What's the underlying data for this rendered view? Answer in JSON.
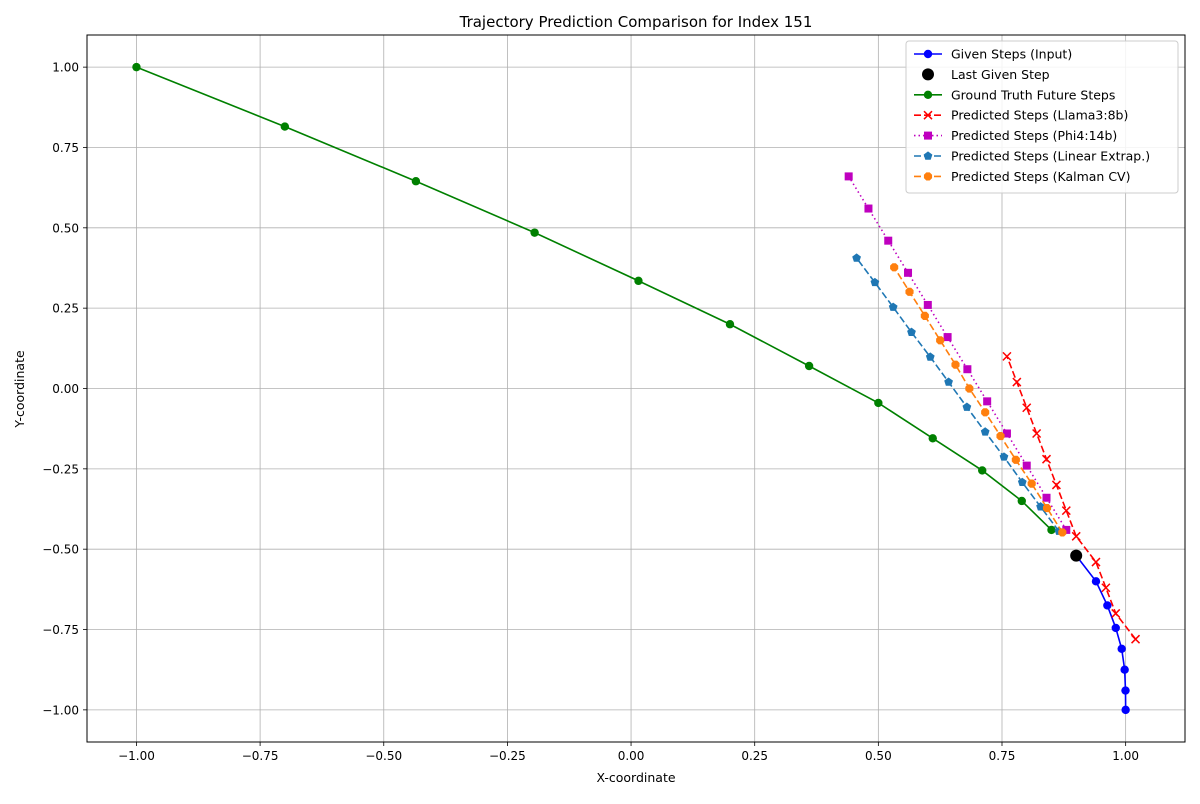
{
  "chart_data": {
    "type": "line",
    "title": "Trajectory Prediction Comparison for Index 151",
    "xlabel": "X-coordinate",
    "ylabel": "Y-coordinate",
    "xlim": [
      -1.1,
      1.12
    ],
    "ylim": [
      -1.1,
      1.1
    ],
    "xticks": [
      -1.0,
      -0.75,
      -0.5,
      -0.25,
      0.0,
      0.25,
      0.5,
      0.75,
      1.0
    ],
    "xtick_labels": [
      "−1.00",
      "−0.75",
      "−0.50",
      "−0.25",
      "0.00",
      "0.25",
      "0.50",
      "0.75",
      "1.00"
    ],
    "yticks": [
      -1.0,
      -0.75,
      -0.5,
      -0.25,
      0.0,
      0.25,
      0.5,
      0.75,
      1.0
    ],
    "ytick_labels": [
      "−1.00",
      "−0.75",
      "−0.50",
      "−0.25",
      "0.00",
      "0.25",
      "0.50",
      "0.75",
      "1.00"
    ],
    "grid": true,
    "legend_position": "top-right",
    "series": [
      {
        "name": "Given Steps (Input)",
        "color": "#0000ff",
        "line_style": "solid",
        "marker": "circle",
        "x": [
          1.0,
          0.9997,
          0.998,
          0.992,
          0.98,
          0.963,
          0.94,
          0.9
        ],
        "y": [
          -1.0,
          -0.94,
          -0.875,
          -0.81,
          -0.745,
          -0.675,
          -0.6,
          -0.52
        ]
      },
      {
        "name": "Last Given Step",
        "color": "#000000",
        "line_style": "none",
        "marker": "big-circle",
        "x": [
          0.9
        ],
        "y": [
          -0.52
        ]
      },
      {
        "name": "Ground Truth Future Steps",
        "color": "#008000",
        "line_style": "solid",
        "marker": "circle",
        "x": [
          0.85,
          0.79,
          0.71,
          0.61,
          0.5,
          0.36,
          0.2,
          0.015,
          -0.195,
          -0.435,
          -0.7,
          -1.0
        ],
        "y": [
          -0.44,
          -0.35,
          -0.255,
          -0.155,
          -0.045,
          0.07,
          0.2,
          0.335,
          0.485,
          0.645,
          0.815,
          1.0
        ]
      },
      {
        "name": "Predicted Steps (Llama3:8b)",
        "color": "#ff0000",
        "line_style": "dashed",
        "marker": "x",
        "x": [
          1.02,
          0.98,
          0.96,
          0.94,
          0.9,
          0.88,
          0.86,
          0.84,
          0.82,
          0.8,
          0.78,
          0.76
        ],
        "y": [
          -0.78,
          -0.7,
          -0.62,
          -0.54,
          -0.46,
          -0.38,
          -0.3,
          -0.22,
          -0.14,
          -0.06,
          0.02,
          0.1
        ]
      },
      {
        "name": "Predicted Steps (Phi4:14b)",
        "color": "#bf00bf",
        "line_style": "dotted",
        "marker": "square",
        "x": [
          0.88,
          0.84,
          0.8,
          0.76,
          0.72,
          0.68,
          0.64,
          0.6,
          0.56,
          0.52,
          0.48,
          0.44
        ],
        "y": [
          -0.44,
          -0.34,
          -0.24,
          -0.14,
          -0.04,
          0.06,
          0.16,
          0.26,
          0.36,
          0.46,
          0.56,
          0.66
        ]
      },
      {
        "name": "Predicted Steps (Linear Extrap.)",
        "color": "#1f77b4",
        "line_style": "dashed",
        "marker": "pentagon",
        "x": [
          0.865,
          0.828,
          0.791,
          0.754,
          0.716,
          0.679,
          0.642,
          0.605,
          0.567,
          0.53,
          0.493,
          0.456
        ],
        "y": [
          -0.444,
          -0.368,
          -0.292,
          -0.213,
          -0.135,
          -0.058,
          0.02,
          0.098,
          0.175,
          0.253,
          0.33,
          0.406
        ]
      },
      {
        "name": "Predicted Steps (Kalman CV)",
        "color": "#ff7f0e",
        "line_style": "dashed",
        "marker": "octagon",
        "x": [
          0.872,
          0.841,
          0.81,
          0.778,
          0.747,
          0.716,
          0.684,
          0.656,
          0.625,
          0.594,
          0.563,
          0.532
        ],
        "y": [
          -0.448,
          -0.372,
          -0.296,
          -0.222,
          -0.148,
          -0.074,
          0.0,
          0.074,
          0.15,
          0.226,
          0.301,
          0.377
        ]
      }
    ]
  }
}
